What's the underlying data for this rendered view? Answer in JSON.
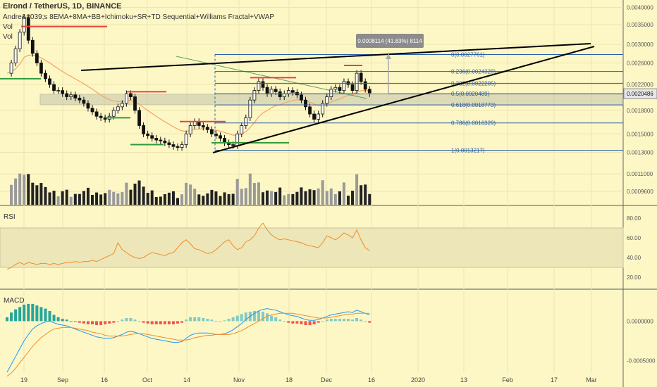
{
  "header": {
    "symbol": "Elrond / TetherUS, 1D, BINANCE",
    "indicators": "Andre&#039;s 8EMA+8MA+BB+Ichimoku+SR+TD Sequential+Williams Fractal+VWAP",
    "vol1": "Vol",
    "vol2": "Vol"
  },
  "colors": {
    "background": "#fdf7c6",
    "fib": "#2a5fa8",
    "trend": "#000000",
    "ema": "#f4a460",
    "rsi": "#f28c28",
    "macd": "#2196f3",
    "signal": "#f28c28",
    "res": "#e8423a",
    "sup": "#2e9a3a"
  },
  "chart_data": [
    {
      "type": "candlestick",
      "title": "Elrond / TetherUS, 1D, BINANCE",
      "y_scale": "log",
      "ylim": [
        0.00088,
        0.0041
      ],
      "y_ticks": [
        "0.0040000",
        "0.0035000",
        "0.0030000",
        "0.0026000",
        "0.0022000",
        "0.0018000",
        "0.0015000",
        "0.0013000",
        "0.0011000",
        "0.0009600"
      ],
      "current_price": "0.0020486",
      "x_ticks": [
        "19",
        "Sep",
        "16",
        "Oct",
        "14",
        "Nov",
        "18",
        "Dec",
        "16",
        "2020",
        "13",
        "Feb",
        "17",
        "Mar"
      ],
      "measure_label": "0.0008114 (41.83%) 8114",
      "fib_levels": [
        {
          "label": "0(0.0027761)",
          "value": 0.0027761
        },
        {
          "label": "0.236(0.0024328)",
          "value": 0.0024328
        },
        {
          "label": "0.382(0.0022205)",
          "value": 0.0022205
        },
        {
          "label": "0.5(0.0020489)",
          "value": 0.0020489
        },
        {
          "label": "0.618(0.0018773)",
          "value": 0.0018773
        },
        {
          "label": "0.786(0.0016329)",
          "value": 0.0016329
        },
        {
          "label": "1(0.0013217)",
          "value": 0.0013217
        }
      ],
      "close_series": [
        0.0024,
        0.0026,
        0.0029,
        0.0033,
        0.0037,
        0.0031,
        0.0028,
        0.0026,
        0.0024,
        0.0023,
        0.0022,
        0.0021,
        0.0021,
        0.00205,
        0.002,
        0.00203,
        0.00198,
        0.00195,
        0.0019,
        0.00183,
        0.00178,
        0.00172,
        0.0017,
        0.00168,
        0.00172,
        0.0018,
        0.00185,
        0.0019,
        0.00205,
        0.002,
        0.0018,
        0.0016,
        0.0015,
        0.00148,
        0.00145,
        0.00143,
        0.00142,
        0.0014,
        0.00138,
        0.00136,
        0.00135,
        0.00138,
        0.0015,
        0.0016,
        0.00165,
        0.0016,
        0.00158,
        0.00155,
        0.0015,
        0.00148,
        0.00145,
        0.0014,
        0.00138,
        0.00137,
        0.0015,
        0.0016,
        0.0017,
        0.00195,
        0.0021,
        0.00225,
        0.00215,
        0.00205,
        0.00212,
        0.00208,
        0.002,
        0.00205,
        0.0021,
        0.00207,
        0.00203,
        0.00195,
        0.00185,
        0.00175,
        0.00168,
        0.00175,
        0.0019,
        0.002,
        0.00212,
        0.00215,
        0.0021,
        0.00225,
        0.0022,
        0.0021,
        0.0024,
        0.00225,
        0.00212,
        0.00205
      ]
    },
    {
      "type": "line",
      "title": "RSI",
      "ylim": [
        10,
        90
      ],
      "y_ticks": [
        "80.00",
        "60.00",
        "40.00",
        "20.00"
      ],
      "band": [
        30,
        70
      ],
      "values": [
        28,
        30,
        33,
        35,
        33,
        35,
        34,
        33,
        34,
        34,
        33,
        34,
        33,
        34,
        35,
        35,
        36,
        35,
        36,
        36,
        37,
        36,
        38,
        40,
        42,
        44,
        55,
        48,
        45,
        42,
        40,
        39,
        40,
        43,
        45,
        44,
        43,
        42,
        44,
        45,
        50,
        55,
        58,
        54,
        49,
        48,
        46,
        44,
        45,
        48,
        52,
        56,
        58,
        52,
        48,
        50,
        56,
        58,
        62,
        70,
        75,
        68,
        63,
        60,
        58,
        59,
        58,
        57,
        56,
        55,
        53,
        52,
        51,
        50,
        55,
        62,
        60,
        58,
        61,
        65,
        63,
        60,
        68,
        58,
        50,
        47
      ]
    },
    {
      "type": "line",
      "title": "MACD",
      "ylim": [
        -0.00082,
        0.00038
      ],
      "y_ticks": [
        "0.0000000",
        "-0.0005000"
      ],
      "macd": [
        -0.00065,
        -0.00055,
        -0.00045,
        -0.00035,
        -0.00025,
        -0.00017,
        -0.0001,
        -6e-05,
        -3e-05,
        -1e-05,
        0,
        -2e-05,
        -4e-05,
        -5e-05,
        -6e-05,
        -8e-05,
        -0.0001,
        -0.00012,
        -0.00014,
        -0.00016,
        -0.00018,
        -0.0002,
        -0.00021,
        -0.00022,
        -0.00022,
        -0.00021,
        -0.00019,
        -0.00017,
        -0.00014,
        -0.00013,
        -0.00014,
        -0.00016,
        -0.00018,
        -0.0002,
        -0.00022,
        -0.00023,
        -0.00024,
        -0.00025,
        -0.00026,
        -0.00027,
        -0.00027,
        -0.00026,
        -0.00022,
        -0.00018,
        -0.00016,
        -0.00015,
        -0.00015,
        -0.00015,
        -0.00016,
        -0.00017,
        -0.00017,
        -0.00016,
        -0.00014,
        -0.00011,
        -7e-05,
        -3e-05,
        2e-05,
        6e-05,
        0.0001,
        0.00013,
        0.00015,
        0.00016,
        0.00015,
        0.00014,
        0.00012,
        0.0001,
        8e-05,
        7e-05,
        6e-05,
        4e-05,
        2e-05,
        1e-05,
        1e-05,
        2e-05,
        4e-05,
        6e-05,
        8e-05,
        9e-05,
        0.0001,
        0.00011,
        0.00012,
        0.00011,
        0.00014,
        0.00012,
        0.0001,
        8e-05
      ],
      "signal": [
        -0.0007,
        -0.00066,
        -0.0006,
        -0.00053,
        -0.00046,
        -0.00039,
        -0.00032,
        -0.00026,
        -0.00021,
        -0.00017,
        -0.00013,
        -0.0001,
        -9e-05,
        -8e-05,
        -8e-05,
        -8e-05,
        -9e-05,
        -0.0001,
        -0.00011,
        -0.00012,
        -0.00014,
        -0.00015,
        -0.00016,
        -0.00018,
        -0.00019,
        -0.00019,
        -0.00019,
        -0.00019,
        -0.00018,
        -0.00017,
        -0.00016,
        -0.00016,
        -0.00016,
        -0.00017,
        -0.00018,
        -0.00019,
        -0.0002,
        -0.00021,
        -0.00022,
        -0.00023,
        -0.00024,
        -0.00024,
        -0.00024,
        -0.00023,
        -0.00021,
        -0.0002,
        -0.00019,
        -0.00018,
        -0.00018,
        -0.00017,
        -0.00017,
        -0.00017,
        -0.00017,
        -0.00016,
        -0.00014,
        -0.00012,
        -9e-05,
        -6e-05,
        -3e-05,
        0,
        3e-05,
        6e-05,
        8e-05,
        9e-05,
        0.0001,
        0.0001,
        0.0001,
        0.0001,
        9e-05,
        8e-05,
        7e-05,
        6e-05,
        5e-05,
        4e-05,
        4e-05,
        4e-05,
        5e-05,
        6e-05,
        7e-05,
        8e-05,
        9e-05,
        9e-05,
        0.0001,
        0.0001,
        0.0001,
        0.0001
      ]
    }
  ]
}
